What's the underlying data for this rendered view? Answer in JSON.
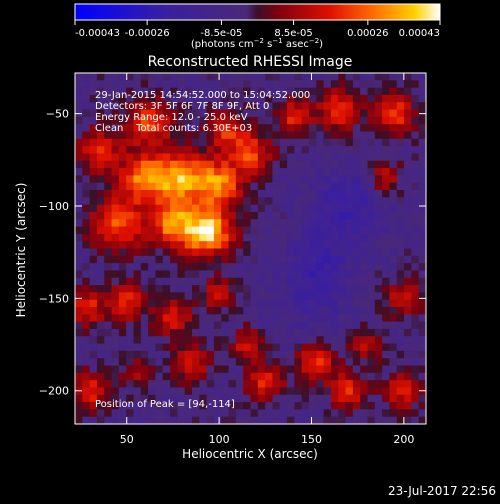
{
  "chart_data": {
    "type": "heatmap",
    "title": "Reconstructed RHESSI Image",
    "xlabel": "Heliocentric X (arcsec)",
    "ylabel": "Heliocentric Y (arcsec)",
    "xlim": [
      22,
      212
    ],
    "ylim": [
      -218,
      -28
    ],
    "xticks": [
      50,
      100,
      150,
      200
    ],
    "yticks": [
      -50,
      -100,
      -150,
      -200
    ],
    "colorbar": {
      "min": -0.00043,
      "max": 0.00043,
      "tick_labels": [
        "-0.00043",
        "-0.00026",
        "-8.5e-05",
        "8.5e-05",
        "0.00026",
        "0.00043"
      ],
      "tick_values": [
        -0.00043,
        -0.00026,
        -8.5e-05,
        8.5e-05,
        0.00026,
        0.00043
      ],
      "unit_label": "(photons cm^-2 s^-1 asec^-2)"
    },
    "annotations": [
      "29-Jan-2015 14:54:52.000 to 15:04:52.000",
      "Detectors: 3F 5F 6F 7F 8F 9F, Att 0",
      "Energy Range: 12.0 - 25.0 keV",
      "Clean    Total counts: 6.30E+03"
    ],
    "peak_label": "Position of Peak = [94,-114]",
    "peak": [
      94,
      -114
    ],
    "grid": false,
    "sources": [
      {
        "x": 94,
        "y": -114,
        "amp": 1.0,
        "r": 9
      },
      {
        "x": 78,
        "y": -85,
        "amp": 0.85,
        "r": 10
      },
      {
        "x": 100,
        "y": -88,
        "amp": 0.8,
        "r": 9
      },
      {
        "x": 58,
        "y": -85,
        "amp": 0.7,
        "r": 9
      },
      {
        "x": 45,
        "y": -110,
        "amp": 0.65,
        "r": 10
      },
      {
        "x": 75,
        "y": -110,
        "amp": 0.75,
        "r": 9
      },
      {
        "x": 62,
        "y": -55,
        "amp": 0.6,
        "r": 9
      },
      {
        "x": 35,
        "y": -70,
        "amp": 0.55,
        "r": 8
      },
      {
        "x": 105,
        "y": -60,
        "amp": 0.55,
        "r": 8
      },
      {
        "x": 118,
        "y": -72,
        "amp": 0.6,
        "r": 7
      },
      {
        "x": 140,
        "y": -52,
        "amp": 0.5,
        "r": 7
      },
      {
        "x": 165,
        "y": -48,
        "amp": 0.55,
        "r": 8
      },
      {
        "x": 195,
        "y": -50,
        "amp": 0.6,
        "r": 8
      },
      {
        "x": 190,
        "y": -85,
        "amp": 0.45,
        "r": 6
      },
      {
        "x": 28,
        "y": -155,
        "amp": 0.55,
        "r": 7
      },
      {
        "x": 50,
        "y": -152,
        "amp": 0.55,
        "r": 7
      },
      {
        "x": 75,
        "y": -160,
        "amp": 0.5,
        "r": 7
      },
      {
        "x": 100,
        "y": -148,
        "amp": 0.45,
        "r": 6
      },
      {
        "x": 85,
        "y": -185,
        "amp": 0.5,
        "r": 7
      },
      {
        "x": 115,
        "y": -175,
        "amp": 0.45,
        "r": 6
      },
      {
        "x": 125,
        "y": -195,
        "amp": 0.55,
        "r": 7
      },
      {
        "x": 30,
        "y": -200,
        "amp": 0.55,
        "r": 7
      },
      {
        "x": 55,
        "y": -190,
        "amp": 0.35,
        "r": 6
      },
      {
        "x": 152,
        "y": -185,
        "amp": 0.6,
        "r": 7
      },
      {
        "x": 170,
        "y": -200,
        "amp": 0.55,
        "r": 7
      },
      {
        "x": 200,
        "y": -200,
        "amp": 0.5,
        "r": 7
      },
      {
        "x": 200,
        "y": -150,
        "amp": 0.45,
        "r": 7
      },
      {
        "x": 180,
        "y": -175,
        "amp": 0.4,
        "r": 6
      },
      {
        "x": 155,
        "y": -130,
        "amp": -0.25,
        "r": 12
      },
      {
        "x": 170,
        "y": -100,
        "amp": -0.35,
        "r": 14
      },
      {
        "x": 150,
        "y": -150,
        "amp": -0.2,
        "r": 14
      }
    ]
  },
  "footer": {
    "date": "23-Jul-2017 22:56"
  }
}
